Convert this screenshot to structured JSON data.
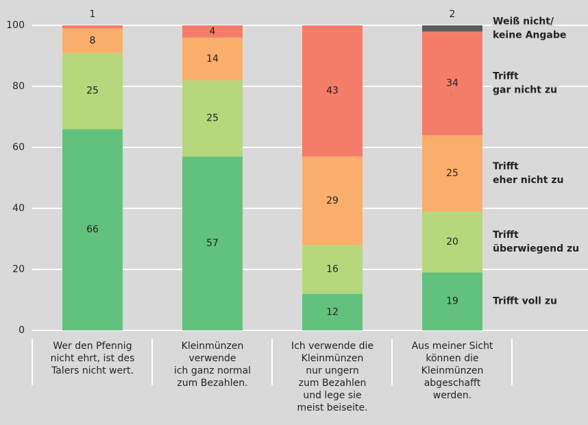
{
  "chart_data": {
    "type": "stacked_bar",
    "categories": [
      [
        "Wer den Pfennig",
        "nicht ehrt, ist des",
        "Talers nicht wert."
      ],
      [
        "Kleinmünzen",
        "verwende",
        "ich ganz normal",
        "zum Bezahlen."
      ],
      [
        "Ich verwende die",
        "Kleinmünzen",
        "nur ungern",
        "zum Bezahlen",
        "und lege sie",
        "meist beiseite."
      ],
      [
        "Aus meiner Sicht",
        "können die",
        "Kleinmünzen",
        "abgeschafft",
        "werden."
      ]
    ],
    "series": [
      {
        "name": [
          "Trifft voll zu"
        ],
        "color": "#63c17e",
        "values": [
          66,
          57,
          12,
          19
        ]
      },
      {
        "name": [
          "Trifft",
          "überwiegend zu"
        ],
        "color": "#b6d77c",
        "values": [
          25,
          25,
          16,
          20
        ]
      },
      {
        "name": [
          "Trifft",
          "eher nicht zu"
        ],
        "color": "#f9ae6c",
        "values": [
          8,
          14,
          29,
          25
        ]
      },
      {
        "name": [
          "Trifft",
          "gar nicht zu"
        ],
        "color": "#f47d6a",
        "values": [
          1,
          4,
          43,
          34
        ]
      },
      {
        "name": [
          "Weiß nicht/",
          "keine Angabe"
        ],
        "color": "#5b5b5b",
        "values": [
          null,
          null,
          null,
          2
        ]
      }
    ],
    "ylim": [
      0,
      100
    ],
    "yticks": [
      0,
      20,
      40,
      60,
      80,
      100
    ],
    "grid": true
  }
}
